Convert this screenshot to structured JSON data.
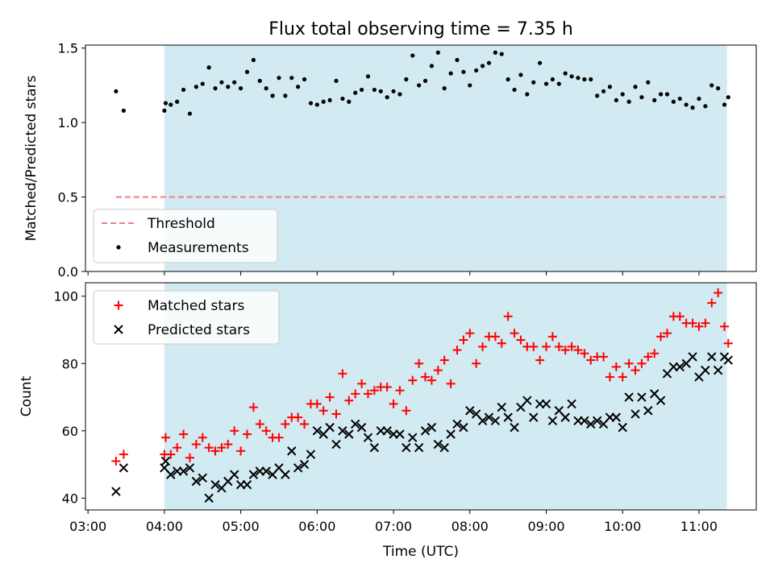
{
  "colors": {
    "shade": "#add8e6",
    "threshold": "#f08080",
    "matched": "#ff0000",
    "predicted": "#000000",
    "measurements": "#000000"
  },
  "chart_data": [
    {
      "type": "scatter",
      "title": "Flux total observing time = 7.35 h",
      "xlabel": "",
      "ylabel": "Matched/Predicted stars",
      "xlim": [
        "02:58",
        "11:45"
      ],
      "ylim": [
        0,
        1.52
      ],
      "yticks": [
        "0.0",
        "0.5",
        "1.0",
        "1.5"
      ],
      "shaded_range": [
        "04:00",
        "11:22"
      ],
      "legend": {
        "position": "lower-left",
        "entries": [
          "Threshold",
          "Measurements"
        ]
      },
      "threshold": {
        "name": "Threshold",
        "value": 0.5,
        "x_range": [
          "03:22",
          "11:22"
        ]
      },
      "series": [
        {
          "name": "Measurements",
          "x": [
            "03:22",
            "03:28",
            "04:00",
            "04:01",
            "04:05",
            "04:10",
            "04:15",
            "04:20",
            "04:25",
            "04:30",
            "04:35",
            "04:40",
            "04:45",
            "04:50",
            "04:55",
            "05:00",
            "05:05",
            "05:10",
            "05:15",
            "05:20",
            "05:25",
            "05:30",
            "05:35",
            "05:40",
            "05:45",
            "05:50",
            "05:55",
            "06:00",
            "06:05",
            "06:10",
            "06:15",
            "06:20",
            "06:25",
            "06:30",
            "06:35",
            "06:40",
            "06:45",
            "06:50",
            "06:55",
            "07:00",
            "07:05",
            "07:10",
            "07:15",
            "07:20",
            "07:25",
            "07:30",
            "07:35",
            "07:40",
            "07:45",
            "07:50",
            "07:55",
            "08:00",
            "08:05",
            "08:10",
            "08:15",
            "08:20",
            "08:25",
            "08:30",
            "08:35",
            "08:40",
            "08:45",
            "08:50",
            "08:55",
            "09:00",
            "09:05",
            "09:10",
            "09:15",
            "09:20",
            "09:25",
            "09:30",
            "09:35",
            "09:40",
            "09:45",
            "09:50",
            "09:55",
            "10:00",
            "10:05",
            "10:10",
            "10:15",
            "10:20",
            "10:25",
            "10:30",
            "10:35",
            "10:40",
            "10:45",
            "10:50",
            "10:55",
            "11:00",
            "11:05",
            "11:10",
            "11:15",
            "11:20",
            "11:23"
          ],
          "y": [
            1.21,
            1.08,
            1.08,
            1.13,
            1.12,
            1.14,
            1.22,
            1.06,
            1.24,
            1.26,
            1.37,
            1.23,
            1.27,
            1.24,
            1.27,
            1.23,
            1.34,
            1.42,
            1.28,
            1.23,
            1.18,
            1.3,
            1.18,
            1.3,
            1.24,
            1.29,
            1.13,
            1.12,
            1.14,
            1.15,
            1.28,
            1.16,
            1.14,
            1.2,
            1.22,
            1.31,
            1.22,
            1.21,
            1.17,
            1.21,
            1.19,
            1.29,
            1.45,
            1.25,
            1.28,
            1.38,
            1.47,
            1.23,
            1.33,
            1.42,
            1.34,
            1.25,
            1.35,
            1.38,
            1.4,
            1.47,
            1.46,
            1.29,
            1.22,
            1.32,
            1.19,
            1.27,
            1.4,
            1.26,
            1.29,
            1.26,
            1.33,
            1.31,
            1.3,
            1.29,
            1.29,
            1.18,
            1.21,
            1.24,
            1.15,
            1.19,
            1.14,
            1.24,
            1.17,
            1.27,
            1.15,
            1.19,
            1.19,
            1.14,
            1.16,
            1.12,
            1.1,
            1.16,
            1.11,
            1.25,
            1.23,
            1.12,
            1.17
          ]
        }
      ]
    },
    {
      "type": "scatter",
      "title": "",
      "xlabel": "Time (UTC)",
      "ylabel": "Count",
      "xlim": [
        "02:58",
        "11:45"
      ],
      "ylim": [
        36.5,
        104
      ],
      "xticks": [
        "03:00",
        "04:00",
        "05:00",
        "06:00",
        "07:00",
        "08:00",
        "09:00",
        "10:00",
        "11:00"
      ],
      "yticks": [
        "40",
        "60",
        "80",
        "100"
      ],
      "shaded_range": [
        "04:00",
        "11:22"
      ],
      "legend": {
        "position": "upper-left",
        "entries": [
          "Matched stars",
          "Predicted stars"
        ]
      },
      "series": [
        {
          "name": "Matched stars",
          "marker": "+",
          "x": [
            "03:22",
            "03:28",
            "04:00",
            "04:01",
            "04:05",
            "04:10",
            "04:15",
            "04:20",
            "04:25",
            "04:30",
            "04:35",
            "04:40",
            "04:45",
            "04:50",
            "04:55",
            "05:00",
            "05:05",
            "05:10",
            "05:15",
            "05:20",
            "05:25",
            "05:30",
            "05:35",
            "05:40",
            "05:45",
            "05:50",
            "05:55",
            "06:00",
            "06:05",
            "06:10",
            "06:15",
            "06:20",
            "06:25",
            "06:30",
            "06:35",
            "06:40",
            "06:45",
            "06:50",
            "06:55",
            "07:00",
            "07:05",
            "07:10",
            "07:15",
            "07:20",
            "07:25",
            "07:30",
            "07:35",
            "07:40",
            "07:45",
            "07:50",
            "07:55",
            "08:00",
            "08:05",
            "08:10",
            "08:15",
            "08:20",
            "08:25",
            "08:30",
            "08:35",
            "08:40",
            "08:45",
            "08:50",
            "08:55",
            "09:00",
            "09:05",
            "09:10",
            "09:15",
            "09:20",
            "09:25",
            "09:30",
            "09:35",
            "09:40",
            "09:45",
            "09:50",
            "09:55",
            "10:00",
            "10:05",
            "10:10",
            "10:15",
            "10:20",
            "10:25",
            "10:30",
            "10:35",
            "10:40",
            "10:45",
            "10:50",
            "10:55",
            "11:00",
            "11:05",
            "11:10",
            "11:15",
            "11:20",
            "11:23"
          ],
          "y": [
            51,
            53,
            53,
            58,
            53,
            55,
            59,
            52,
            56,
            58,
            55,
            54,
            55,
            56,
            60,
            54,
            59,
            67,
            62,
            60,
            58,
            58,
            62,
            64,
            64,
            62,
            68,
            68,
            66,
            70,
            65,
            77,
            69,
            71,
            74,
            71,
            72,
            73,
            73,
            68,
            72,
            66,
            75,
            80,
            76,
            75,
            78,
            81,
            74,
            84,
            87,
            89,
            80,
            85,
            88,
            88,
            86,
            94,
            89,
            87,
            85,
            85,
            81,
            85,
            88,
            85,
            84,
            85,
            84,
            83,
            81,
            82,
            82,
            76,
            79,
            76,
            80,
            78,
            80,
            82,
            83,
            88,
            89,
            94,
            94,
            92,
            92,
            91,
            92,
            98,
            101,
            91,
            86
          ]
        },
        {
          "name": "Predicted stars",
          "marker": "x",
          "x": [
            "03:22",
            "03:28",
            "04:00",
            "04:01",
            "04:05",
            "04:10",
            "04:15",
            "04:20",
            "04:25",
            "04:30",
            "04:35",
            "04:40",
            "04:45",
            "04:50",
            "04:55",
            "05:00",
            "05:05",
            "05:10",
            "05:15",
            "05:20",
            "05:25",
            "05:30",
            "05:35",
            "05:40",
            "05:45",
            "05:50",
            "05:55",
            "06:00",
            "06:05",
            "06:10",
            "06:15",
            "06:20",
            "06:25",
            "06:30",
            "06:35",
            "06:40",
            "06:45",
            "06:50",
            "06:55",
            "07:00",
            "07:05",
            "07:10",
            "07:15",
            "07:20",
            "07:25",
            "07:30",
            "07:35",
            "07:40",
            "07:45",
            "07:50",
            "07:55",
            "08:00",
            "08:05",
            "08:10",
            "08:15",
            "08:20",
            "08:25",
            "08:30",
            "08:35",
            "08:40",
            "08:45",
            "08:50",
            "08:55",
            "09:00",
            "09:05",
            "09:10",
            "09:15",
            "09:20",
            "09:25",
            "09:30",
            "09:35",
            "09:40",
            "09:45",
            "09:50",
            "09:55",
            "10:00",
            "10:05",
            "10:10",
            "10:15",
            "10:20",
            "10:25",
            "10:30",
            "10:35",
            "10:40",
            "10:45",
            "10:50",
            "10:55",
            "11:00",
            "11:05",
            "11:10",
            "11:15",
            "11:20",
            "11:23"
          ],
          "y": [
            42,
            49,
            49,
            51,
            47,
            48,
            48,
            49,
            45,
            46,
            40,
            44,
            43,
            45,
            47,
            44,
            44,
            47,
            48,
            48,
            47,
            49,
            47,
            54,
            49,
            50,
            53,
            60,
            59,
            61,
            56,
            60,
            59,
            62,
            61,
            58,
            55,
            60,
            60,
            59,
            59,
            55,
            58,
            55,
            60,
            61,
            56,
            55,
            59,
            62,
            61,
            66,
            65,
            63,
            64,
            63,
            67,
            64,
            61,
            67,
            69,
            64,
            68,
            68,
            63,
            66,
            64,
            68,
            63,
            63,
            62,
            63,
            62,
            64,
            64,
            61,
            70,
            65,
            70,
            66,
            71,
            69,
            77,
            79,
            79,
            80,
            82,
            76,
            78,
            82,
            78,
            82,
            81
          ]
        }
      ]
    }
  ]
}
